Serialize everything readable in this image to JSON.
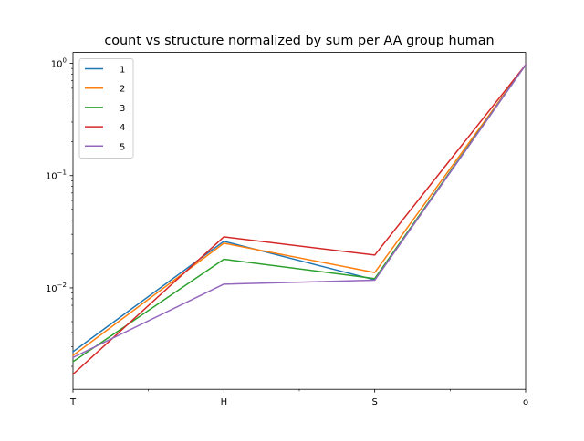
{
  "chart_data": {
    "type": "line",
    "title": "count vs structure normalized by sum per AA group human",
    "xlabel": "",
    "ylabel": "",
    "categories": [
      "T",
      "H",
      "S",
      "o"
    ],
    "yscale": "log",
    "ylim": [
      0.00125,
      1.25
    ],
    "yticks": [
      {
        "value": 1,
        "base": "10",
        "exp": "0"
      },
      {
        "value": 0.1,
        "base": "10",
        "exp": "−1"
      },
      {
        "value": 0.01,
        "base": "10",
        "exp": "−2"
      }
    ],
    "grid": false,
    "legend_position": "top-left",
    "series": [
      {
        "name": "1",
        "color": "#1f77b4",
        "values": [
          0.0027,
          0.026,
          0.0118,
          0.97
        ]
      },
      {
        "name": "2",
        "color": "#ff7f0e",
        "values": [
          0.0025,
          0.025,
          0.0137,
          0.97
        ]
      },
      {
        "name": "3",
        "color": "#2ca02c",
        "values": [
          0.0022,
          0.018,
          0.0121,
          0.97
        ]
      },
      {
        "name": "4",
        "color": "#d62728",
        "values": [
          0.0017,
          0.0285,
          0.0196,
          0.97
        ]
      },
      {
        "name": "5",
        "color": "#9467bd",
        "values": [
          0.0024,
          0.0108,
          0.0117,
          0.97
        ]
      }
    ]
  }
}
